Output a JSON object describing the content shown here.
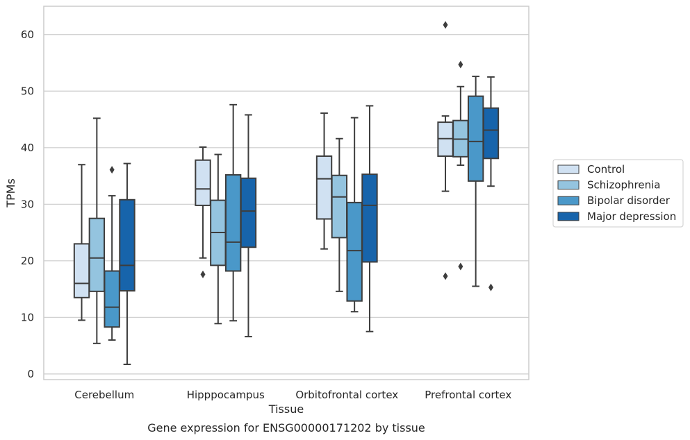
{
  "chart_data": {
    "type": "box",
    "title": "",
    "caption": "Gene expression for ENSG00000171202 by tissue",
    "xlabel": "Tissue",
    "ylabel": "TPMs",
    "ylim": [
      -1,
      65
    ],
    "yticks": [
      0,
      10,
      20,
      30,
      40,
      50,
      60
    ],
    "grid": "horizontal",
    "legend_position": "right",
    "categories": [
      "Cerebellum",
      "Hipppocampus",
      "Orbitofrontal cortex",
      "Prefrontal cortex"
    ],
    "series": [
      {
        "name": "Control",
        "color": "#d0e1f2",
        "boxes": [
          {
            "whislo": 9.5,
            "q1": 13.5,
            "med": 16.0,
            "q3": 23.0,
            "whishi": 37.0,
            "fliers": []
          },
          {
            "whislo": 20.5,
            "q1": 29.8,
            "med": 32.7,
            "q3": 37.8,
            "whishi": 40.1,
            "fliers": [
              17.6
            ]
          },
          {
            "whislo": 22.1,
            "q1": 27.4,
            "med": 34.5,
            "q3": 38.5,
            "whishi": 46.1,
            "fliers": []
          },
          {
            "whislo": 32.3,
            "q1": 38.5,
            "med": 41.6,
            "q3": 44.5,
            "whishi": 45.6,
            "fliers": [
              17.3,
              61.7
            ]
          }
        ]
      },
      {
        "name": "Schizophrenia",
        "color": "#94c4df",
        "boxes": [
          {
            "whislo": 5.4,
            "q1": 14.6,
            "med": 20.5,
            "q3": 27.5,
            "whishi": 45.2,
            "fliers": []
          },
          {
            "whislo": 8.9,
            "q1": 19.2,
            "med": 25.0,
            "q3": 30.7,
            "whishi": 38.8,
            "fliers": []
          },
          {
            "whislo": 14.6,
            "q1": 24.1,
            "med": 31.3,
            "q3": 35.1,
            "whishi": 41.6,
            "fliers": []
          },
          {
            "whislo": 36.9,
            "q1": 38.4,
            "med": 41.5,
            "q3": 44.8,
            "whishi": 50.8,
            "fliers": [
              19.0,
              54.7
            ]
          }
        ]
      },
      {
        "name": "Bipolar disorder",
        "color": "#4a98c9",
        "boxes": [
          {
            "whislo": 6.0,
            "q1": 8.3,
            "med": 11.8,
            "q3": 18.2,
            "whishi": 31.5,
            "fliers": [
              36.1
            ]
          },
          {
            "whislo": 9.4,
            "q1": 18.2,
            "med": 23.3,
            "q3": 35.2,
            "whishi": 47.6,
            "fliers": []
          },
          {
            "whislo": 11.0,
            "q1": 12.9,
            "med": 21.8,
            "q3": 30.3,
            "whishi": 45.3,
            "fliers": []
          },
          {
            "whislo": 15.5,
            "q1": 34.1,
            "med": 41.1,
            "q3": 49.1,
            "whishi": 52.6,
            "fliers": []
          }
        ]
      },
      {
        "name": "Major depression",
        "color": "#1764ab",
        "boxes": [
          {
            "whislo": 1.7,
            "q1": 14.7,
            "med": 19.2,
            "q3": 30.8,
            "whishi": 37.2,
            "fliers": []
          },
          {
            "whislo": 6.6,
            "q1": 22.4,
            "med": 28.8,
            "q3": 34.6,
            "whishi": 45.8,
            "fliers": []
          },
          {
            "whislo": 7.5,
            "q1": 19.8,
            "med": 29.8,
            "q3": 35.3,
            "whishi": 47.4,
            "fliers": []
          },
          {
            "whislo": 33.2,
            "q1": 38.1,
            "med": 43.1,
            "q3": 47.0,
            "whishi": 52.5,
            "fliers": [
              15.3
            ]
          }
        ]
      }
    ]
  }
}
